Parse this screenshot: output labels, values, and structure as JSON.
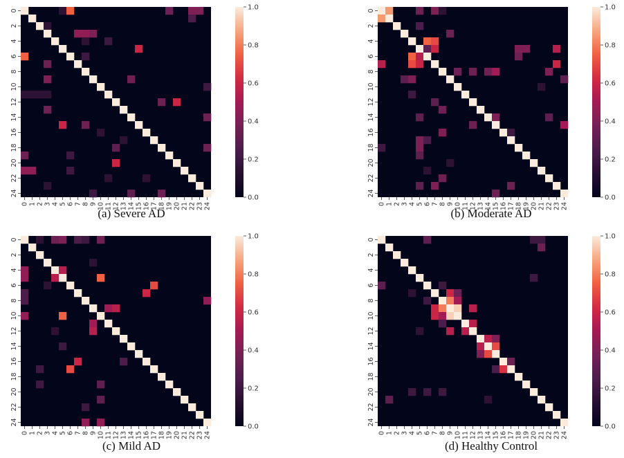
{
  "chart_data": [
    {
      "type": "heatmap",
      "caption": "(a) Severe AD",
      "ticks": [
        "0",
        "1",
        "2",
        "3",
        "4",
        "5",
        "6",
        "7",
        "8",
        "9",
        "10",
        "11",
        "12",
        "13",
        "14",
        "15",
        "16",
        "17",
        "18",
        "19",
        "20",
        "21",
        "22",
        "23",
        "24"
      ],
      "y_ticks": [
        "0",
        "2",
        "4",
        "6",
        "8",
        "10",
        "12",
        "14",
        "16",
        "18",
        "20",
        "22",
        "24"
      ],
      "colorbar_ticks": [
        "0.0",
        "0.2",
        "0.4",
        "0.6",
        "0.8",
        "1.0"
      ],
      "vmin": 0,
      "vmax": 1,
      "diagonal": 1.0,
      "cells": [
        [
          0,
          6,
          0.75
        ],
        [
          6,
          0,
          0.75
        ],
        [
          0,
          5,
          0.15
        ],
        [
          0,
          19,
          0.35
        ],
        [
          0,
          22,
          0.4
        ],
        [
          0,
          23,
          0.4
        ],
        [
          1,
          22,
          0.25
        ],
        [
          2,
          3,
          0.15
        ],
        [
          3,
          7,
          0.45
        ],
        [
          3,
          9,
          0.4
        ],
        [
          4,
          8,
          0.15
        ],
        [
          4,
          11,
          0.2
        ],
        [
          5,
          15,
          0.6
        ],
        [
          15,
          5,
          0.6
        ],
        [
          3,
          8,
          0.45
        ],
        [
          6,
          8,
          0.2
        ],
        [
          7,
          3,
          0.35
        ],
        [
          9,
          3,
          0.4
        ],
        [
          9,
          14,
          0.35
        ],
        [
          12,
          20,
          0.6
        ],
        [
          20,
          12,
          0.6
        ],
        [
          12,
          18,
          0.35
        ],
        [
          13,
          3,
          0.35
        ],
        [
          15,
          8,
          0.35
        ],
        [
          18,
          12,
          0.3
        ],
        [
          19,
          0,
          0.35
        ],
        [
          19,
          6,
          0.2
        ],
        [
          21,
          0,
          0.45
        ],
        [
          21,
          1,
          0.45
        ],
        [
          21,
          6,
          0.2
        ],
        [
          22,
          11,
          0.15
        ],
        [
          24,
          14,
          0.3
        ],
        [
          24,
          18,
          0.35
        ],
        [
          14,
          24,
          0.35
        ],
        [
          18,
          24,
          0.35
        ],
        [
          11,
          0,
          0.15
        ],
        [
          11,
          1,
          0.15
        ],
        [
          11,
          2,
          0.15
        ],
        [
          11,
          3,
          0.15
        ],
        [
          10,
          24,
          0.2
        ],
        [
          17,
          13,
          0.15
        ],
        [
          22,
          16,
          0.15
        ],
        [
          20,
          20,
          1.0
        ],
        [
          23,
          3,
          0.15
        ],
        [
          16,
          10,
          0.15
        ],
        [
          24,
          9,
          0.2
        ]
      ]
    },
    {
      "type": "heatmap",
      "caption": "(b) Moderate AD",
      "ticks": [
        "0",
        "1",
        "2",
        "3",
        "4",
        "5",
        "6",
        "7",
        "8",
        "9",
        "10",
        "11",
        "12",
        "13",
        "14",
        "15",
        "16",
        "17",
        "18",
        "19",
        "20",
        "21",
        "22",
        "23",
        "24"
      ],
      "y_ticks": [
        "0",
        "2",
        "4",
        "6",
        "8",
        "10",
        "12",
        "14",
        "16",
        "18",
        "20",
        "22",
        "24"
      ],
      "colorbar_ticks": [
        "0.0",
        "0.2",
        "0.4",
        "0.6",
        "0.8",
        "1.0"
      ],
      "vmin": 0,
      "vmax": 1,
      "diagonal": 1.0,
      "cells": [
        [
          0,
          1,
          0.85
        ],
        [
          1,
          0,
          0.85
        ],
        [
          0,
          5,
          0.35
        ],
        [
          0,
          7,
          0.4
        ],
        [
          0,
          8,
          0.15
        ],
        [
          2,
          5,
          0.25
        ],
        [
          3,
          9,
          0.35
        ],
        [
          4,
          7,
          0.7
        ],
        [
          7,
          4,
          0.7
        ],
        [
          5,
          5,
          1.0
        ],
        [
          5,
          7,
          0.6
        ],
        [
          7,
          5,
          0.6
        ],
        [
          5,
          6,
          0.3
        ],
        [
          6,
          4,
          0.75
        ],
        [
          4,
          6,
          0.75
        ],
        [
          6,
          5,
          0.55
        ],
        [
          5,
          18,
          0.4
        ],
        [
          5,
          19,
          0.4
        ],
        [
          5,
          23,
          0.55
        ],
        [
          6,
          18,
          0.35
        ],
        [
          7,
          0,
          0.55
        ],
        [
          7,
          23,
          0.6
        ],
        [
          8,
          10,
          0.35
        ],
        [
          8,
          12,
          0.35
        ],
        [
          8,
          14,
          0.35
        ],
        [
          8,
          15,
          0.5
        ],
        [
          8,
          22,
          0.4
        ],
        [
          9,
          3,
          0.3
        ],
        [
          9,
          4,
          0.4
        ],
        [
          9,
          24,
          0.3
        ],
        [
          12,
          7,
          0.3
        ],
        [
          14,
          14,
          1.0
        ],
        [
          14,
          5,
          0.3
        ],
        [
          15,
          15,
          1.0
        ],
        [
          15,
          12,
          0.35
        ],
        [
          14,
          15,
          0.4
        ],
        [
          13,
          8,
          0.35
        ],
        [
          14,
          22,
          0.3
        ],
        [
          15,
          24,
          0.5
        ],
        [
          16,
          8,
          0.4
        ],
        [
          17,
          5,
          0.4
        ],
        [
          18,
          5,
          0.4
        ],
        [
          17,
          6,
          0.25
        ],
        [
          19,
          5,
          0.3
        ],
        [
          22,
          8,
          0.35
        ],
        [
          23,
          5,
          0.3
        ],
        [
          23,
          7,
          0.4
        ],
        [
          23,
          17,
          0.35
        ],
        [
          24,
          15,
          0.35
        ],
        [
          18,
          0,
          0.2
        ],
        [
          20,
          9,
          0.15
        ],
        [
          16,
          17,
          0.2
        ],
        [
          11,
          4,
          0.2
        ],
        [
          21,
          6,
          0.15
        ],
        [
          10,
          21,
          0.15
        ]
      ]
    },
    {
      "type": "heatmap",
      "caption": "(c) Mild AD",
      "ticks": [
        "0",
        "1",
        "2",
        "3",
        "4",
        "5",
        "6",
        "7",
        "8",
        "9",
        "10",
        "11",
        "12",
        "13",
        "14",
        "15",
        "16",
        "17",
        "18",
        "19",
        "20",
        "21",
        "22",
        "23",
        "24"
      ],
      "y_ticks": [
        "0",
        "2",
        "4",
        "6",
        "8",
        "10",
        "12",
        "14",
        "16",
        "18",
        "20",
        "22",
        "24"
      ],
      "colorbar_ticks": [
        "0.0",
        "0.2",
        "0.4",
        "0.6",
        "0.8",
        "1.0"
      ],
      "vmin": 0,
      "vmax": 1,
      "diagonal": 1.0,
      "cells": [
        [
          0,
          4,
          0.35
        ],
        [
          0,
          5,
          0.4
        ],
        [
          0,
          7,
          0.25
        ],
        [
          0,
          8,
          0.2
        ],
        [
          0,
          10,
          0.35
        ],
        [
          0,
          2,
          0.15
        ],
        [
          4,
          0,
          0.45
        ],
        [
          5,
          0,
          0.45
        ],
        [
          4,
          5,
          0.55
        ],
        [
          5,
          4,
          0.55
        ],
        [
          5,
          10,
          0.75
        ],
        [
          10,
          5,
          0.75
        ],
        [
          6,
          17,
          0.7
        ],
        [
          17,
          6,
          0.7
        ],
        [
          9,
          12,
          0.55
        ],
        [
          12,
          9,
          0.55
        ],
        [
          11,
          9,
          0.5
        ],
        [
          9,
          11,
          0.5
        ],
        [
          7,
          0,
          0.25
        ],
        [
          8,
          24,
          0.45
        ],
        [
          10,
          0,
          0.45
        ],
        [
          16,
          7,
          0.6
        ],
        [
          7,
          16,
          0.6
        ],
        [
          17,
          2,
          0.2
        ],
        [
          16,
          13,
          0.25
        ],
        [
          19,
          2,
          0.2
        ],
        [
          24,
          8,
          0.45
        ],
        [
          24,
          10,
          0.45
        ],
        [
          8,
          0,
          0.25
        ],
        [
          3,
          9,
          0.15
        ],
        [
          12,
          4,
          0.15
        ],
        [
          6,
          3,
          0.15
        ],
        [
          14,
          5,
          0.2
        ],
        [
          19,
          10,
          0.3
        ],
        [
          21,
          10,
          0.3
        ],
        [
          22,
          8,
          0.2
        ]
      ]
    },
    {
      "type": "heatmap",
      "caption": "(d) Healthy Control",
      "ticks": [
        "0",
        "1",
        "2",
        "3",
        "4",
        "5",
        "6",
        "7",
        "8",
        "9",
        "10",
        "11",
        "12",
        "13",
        "14",
        "15",
        "16",
        "17",
        "18",
        "19",
        "20",
        "21",
        "22",
        "23",
        "24"
      ],
      "y_ticks": [
        "0",
        "2",
        "4",
        "6",
        "8",
        "10",
        "12",
        "14",
        "16",
        "18",
        "20",
        "22",
        "24"
      ],
      "colorbar_ticks": [
        "0.0",
        "0.2",
        "0.4",
        "0.6",
        "0.8",
        "1.0"
      ],
      "vmin": 0,
      "vmax": 1,
      "diagonal": 1.0,
      "cells": [
        [
          0,
          6,
          0.3
        ],
        [
          0,
          20,
          0.2
        ],
        [
          0,
          21,
          0.2
        ],
        [
          1,
          21,
          0.35
        ],
        [
          3,
          3,
          1.0
        ],
        [
          5,
          20,
          0.2
        ],
        [
          6,
          0,
          0.3
        ],
        [
          7,
          10,
          0.35
        ],
        [
          8,
          9,
          0.8
        ],
        [
          9,
          8,
          0.8
        ],
        [
          9,
          10,
          0.95
        ],
        [
          10,
          9,
          0.95
        ],
        [
          8,
          10,
          0.5
        ],
        [
          10,
          8,
          0.5
        ],
        [
          9,
          7,
          0.6
        ],
        [
          7,
          9,
          0.6
        ],
        [
          10,
          7,
          0.6
        ],
        [
          11,
          12,
          0.55
        ],
        [
          12,
          11,
          0.55
        ],
        [
          12,
          9,
          0.55
        ],
        [
          9,
          12,
          0.55
        ],
        [
          13,
          14,
          0.55
        ],
        [
          14,
          13,
          0.55
        ],
        [
          14,
          15,
          0.7
        ],
        [
          15,
          14,
          0.7
        ],
        [
          13,
          15,
          0.4
        ],
        [
          15,
          13,
          0.4
        ],
        [
          16,
          17,
          0.35
        ],
        [
          17,
          16,
          0.65
        ],
        [
          16,
          16,
          1.0
        ],
        [
          17,
          15,
          0.25
        ],
        [
          8,
          6,
          0.2
        ],
        [
          6,
          8,
          0.2
        ],
        [
          20,
          4,
          0.2
        ],
        [
          20,
          6,
          0.2
        ],
        [
          20,
          8,
          0.2
        ],
        [
          21,
          1,
          0.3
        ],
        [
          11,
          8,
          0.25
        ],
        [
          12,
          5,
          0.15
        ],
        [
          7,
          4,
          0.15
        ],
        [
          21,
          14,
          0.15
        ]
      ]
    }
  ]
}
